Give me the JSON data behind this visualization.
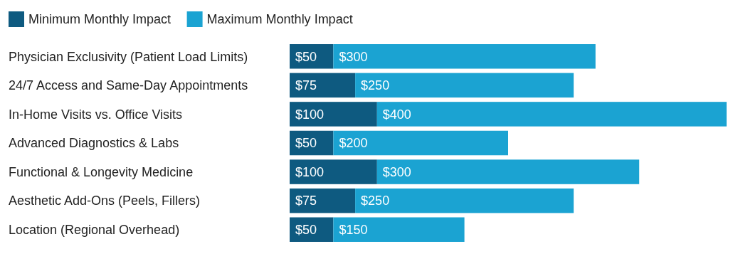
{
  "chart_data": {
    "type": "bar",
    "orientation": "horizontal",
    "stacked": true,
    "legend": "top left",
    "data_labels": true,
    "categories": [
      "Physician Exclusivity (Patient Load Limits)",
      "24/7 Access and Same-Day Appointments",
      "In-Home Visits vs. Office Visits",
      "Advanced Diagnostics & Labs",
      "Functional & Longevity Medicine",
      "Aesthetic Add-Ons (Peels, Fillers)",
      "Location (Regional Overhead)"
    ],
    "series": [
      {
        "name": "Minimum Monthly Impact",
        "color": "#0e5a80",
        "values": [
          50,
          75,
          100,
          50,
          100,
          75,
          50
        ],
        "value_labels": [
          "$50",
          "$75",
          "$100",
          "$50",
          "$100",
          "$75",
          "$50"
        ]
      },
      {
        "name": "Maximum Monthly Impact",
        "color": "#1ba3d2",
        "values": [
          300,
          250,
          400,
          200,
          300,
          250,
          150
        ],
        "value_labels": [
          "$300",
          "$250",
          "$400",
          "$200",
          "$300",
          "$250",
          "$150"
        ]
      }
    ]
  }
}
